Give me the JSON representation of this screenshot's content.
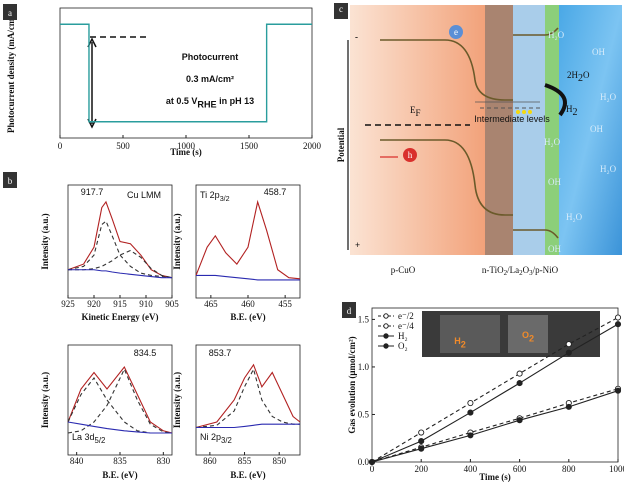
{
  "chart_data": [
    {
      "type": "line",
      "panel_label": "a",
      "x_label": "Time (s)",
      "y_label": "Photocurrent density (mA/cm²)",
      "xlim": [
        0,
        2000
      ],
      "xticks": [
        0,
        500,
        1000,
        1500,
        2000
      ],
      "ylim": [
        -0.05,
        0.35
      ],
      "annotations": [
        [
          "Photocurrent"
        ],
        [
          "0.3 mA/cm²"
        ],
        [
          "at 0.5 V",
          "RHE",
          " in pH 13"
        ]
      ],
      "x": [
        0,
        230,
        230,
        1640,
        1640,
        2000
      ],
      "series": [
        {
          "color": "#2a9d9d",
          "values": [
            0.3,
            0.3,
            0,
            0,
            0.3,
            0.3
          ]
        }
      ]
    },
    {
      "type": "line",
      "panel_label": "b",
      "x_label": "Kinetic Energy (eV)",
      "y_label": "Intensity (a.u.)",
      "xlim": [
        925,
        905
      ],
      "xticks": [
        925,
        920,
        915,
        910,
        905
      ],
      "ylim": [
        0,
        1
      ],
      "annotations": [
        [
          "Cu LMM"
        ],
        [
          "917.7"
        ]
      ],
      "x": [
        925,
        922,
        920,
        918.5,
        917.7,
        916.5,
        915,
        913,
        911,
        909,
        907,
        905
      ],
      "series": [
        {
          "color": "#b22222",
          "values": [
            0.25,
            0.3,
            0.45,
            0.8,
            0.85,
            0.7,
            0.5,
            0.48,
            0.38,
            0.25,
            0.2,
            0.18
          ]
        },
        {
          "color": "#333333",
          "dash": true,
          "values": [
            0.25,
            0.28,
            0.38,
            0.65,
            0.68,
            0.55,
            0.38,
            0.28,
            0.22,
            0.2,
            0.19,
            0.18
          ]
        },
        {
          "color": "#333333",
          "dash": true,
          "values": [
            0.25,
            0.25,
            0.26,
            0.28,
            0.3,
            0.33,
            0.38,
            0.42,
            0.36,
            0.26,
            0.2,
            0.18
          ]
        },
        {
          "color": "#2a2ab0",
          "values": [
            0.25,
            0.25,
            0.25,
            0.24,
            0.24,
            0.23,
            0.22,
            0.21,
            0.2,
            0.19,
            0.18,
            0.18
          ]
        }
      ]
    },
    {
      "type": "line",
      "x_label": "B.E. (eV)",
      "y_label": "Intensity (a.u.)",
      "xlim": [
        467,
        453
      ],
      "xticks": [
        465,
        460,
        455
      ],
      "ylim": [
        0,
        1
      ],
      "annotations": [
        [
          "Ti 2p",
          "3/2"
        ],
        [
          "458.7"
        ]
      ],
      "x": [
        467,
        465.5,
        464.4,
        463,
        461.5,
        460,
        458.7,
        457.5,
        456,
        454.5,
        453
      ],
      "series": [
        {
          "color": "#b22222",
          "values": [
            0.2,
            0.45,
            0.55,
            0.4,
            0.3,
            0.45,
            0.85,
            0.6,
            0.25,
            0.18,
            0.17
          ]
        },
        {
          "color": "#2a2ab0",
          "values": [
            0.2,
            0.2,
            0.2,
            0.19,
            0.18,
            0.17,
            0.16,
            0.16,
            0.16,
            0.16,
            0.16
          ]
        }
      ]
    },
    {
      "type": "line",
      "x_label": "B.E. (eV)",
      "y_label": "Intensity (a.u.)",
      "xlim": [
        841,
        829
      ],
      "xticks": [
        840,
        835,
        830
      ],
      "ylim": [
        0,
        1
      ],
      "annotations": [
        [
          "La 3d",
          "5/2"
        ],
        [
          "834.5"
        ]
      ],
      "x": [
        841,
        839.5,
        838,
        836.5,
        834.5,
        833,
        831.5,
        830,
        829
      ],
      "series": [
        {
          "color": "#b22222",
          "values": [
            0.3,
            0.6,
            0.75,
            0.6,
            0.8,
            0.55,
            0.3,
            0.22,
            0.2
          ]
        },
        {
          "color": "#333333",
          "dash": true,
          "values": [
            0.3,
            0.55,
            0.7,
            0.5,
            0.3,
            0.22,
            0.2,
            0.2,
            0.2
          ]
        },
        {
          "color": "#333333",
          "dash": true,
          "values": [
            0.2,
            0.22,
            0.3,
            0.45,
            0.78,
            0.5,
            0.28,
            0.21,
            0.2
          ]
        },
        {
          "color": "#2a2ab0",
          "values": [
            0.3,
            0.28,
            0.26,
            0.24,
            0.22,
            0.21,
            0.2,
            0.2,
            0.2
          ]
        }
      ]
    },
    {
      "type": "line",
      "x_label": "B.E. (eV)",
      "y_label": "Intensity (a.u.)",
      "xlim": [
        862,
        847
      ],
      "xticks": [
        860,
        855,
        850
      ],
      "ylim": [
        0,
        1
      ],
      "annotations": [
        [
          "Ni 2p",
          "3/2"
        ],
        [
          "853.7"
        ]
      ],
      "x": [
        862,
        859,
        856.5,
        855,
        853.7,
        852.5,
        851,
        849.5,
        848,
        847
      ],
      "series": [
        {
          "color": "#b22222",
          "values": [
            0.25,
            0.3,
            0.5,
            0.7,
            0.82,
            0.62,
            0.75,
            0.55,
            0.35,
            0.3
          ]
        },
        {
          "color": "#333333",
          "dash": true,
          "values": [
            0.25,
            0.27,
            0.4,
            0.62,
            0.78,
            0.5,
            0.35,
            0.3,
            0.28,
            0.28
          ]
        },
        {
          "color": "#2a2ab0",
          "values": [
            0.25,
            0.25,
            0.25,
            0.26,
            0.27,
            0.28,
            0.28,
            0.28,
            0.28,
            0.28
          ]
        }
      ]
    },
    {
      "type": "line",
      "panel_label": "d",
      "x_label": "Time (s)",
      "y_label": "Gas evolution (μmol/cm²)",
      "xlim": [
        0,
        1000
      ],
      "xticks": [
        0,
        200,
        400,
        600,
        800,
        1000
      ],
      "ylim": [
        0,
        1.62
      ],
      "yticks": [
        {
          "value": 0,
          "label": "0.0"
        },
        0.5,
        {
          "value": 1,
          "label": "1.0"
        },
        1.5
      ],
      "legend": "upper left",
      "annotations": [
        [
          "H",
          "2"
        ],
        [
          "O",
          "2"
        ]
      ],
      "x": [
        0,
        200,
        400,
        600,
        800,
        1000
      ],
      "series": [
        {
          "name": "e⁻/2",
          "color": "#222222",
          "dash": true,
          "marker": "open",
          "values": [
            0,
            0.31,
            0.62,
            0.93,
            1.24,
            1.52
          ]
        },
        {
          "name": "e⁻/4",
          "color": "#222222",
          "dash": true,
          "marker": "open",
          "values": [
            0,
            0.155,
            0.31,
            0.46,
            0.62,
            0.77
          ]
        },
        {
          "name": "H₂",
          "color": "#222222",
          "marker": "filled",
          "values": [
            0,
            0.22,
            0.52,
            0.83,
            1.15,
            1.45
          ]
        },
        {
          "name": "O₂",
          "color": "#222222",
          "marker": "filled",
          "values": [
            0,
            0.14,
            0.28,
            0.44,
            0.58,
            0.75
          ]
        }
      ]
    }
  ],
  "diagram": {
    "panel_label": "c",
    "minus": "-",
    "plus": "+",
    "axis_label": "Potential",
    "fermi": [
      "E",
      "F"
    ],
    "electron": "e",
    "hole": "h",
    "intermediate": "Intermediate levels",
    "reaction": [
      "2H",
      "2",
      "O",
      "H",
      "2"
    ],
    "water": [
      "H₂O",
      "H₂O",
      "H₂O",
      "H₂O",
      "H₂O"
    ],
    "hydroxide": [
      "OH",
      "OH",
      "OH",
      "OH"
    ],
    "layer_left": "p-CuO",
    "layer_right": [
      "n-TiO",
      "2",
      "/La",
      "2",
      "O",
      "3",
      "/p-NiO"
    ]
  }
}
